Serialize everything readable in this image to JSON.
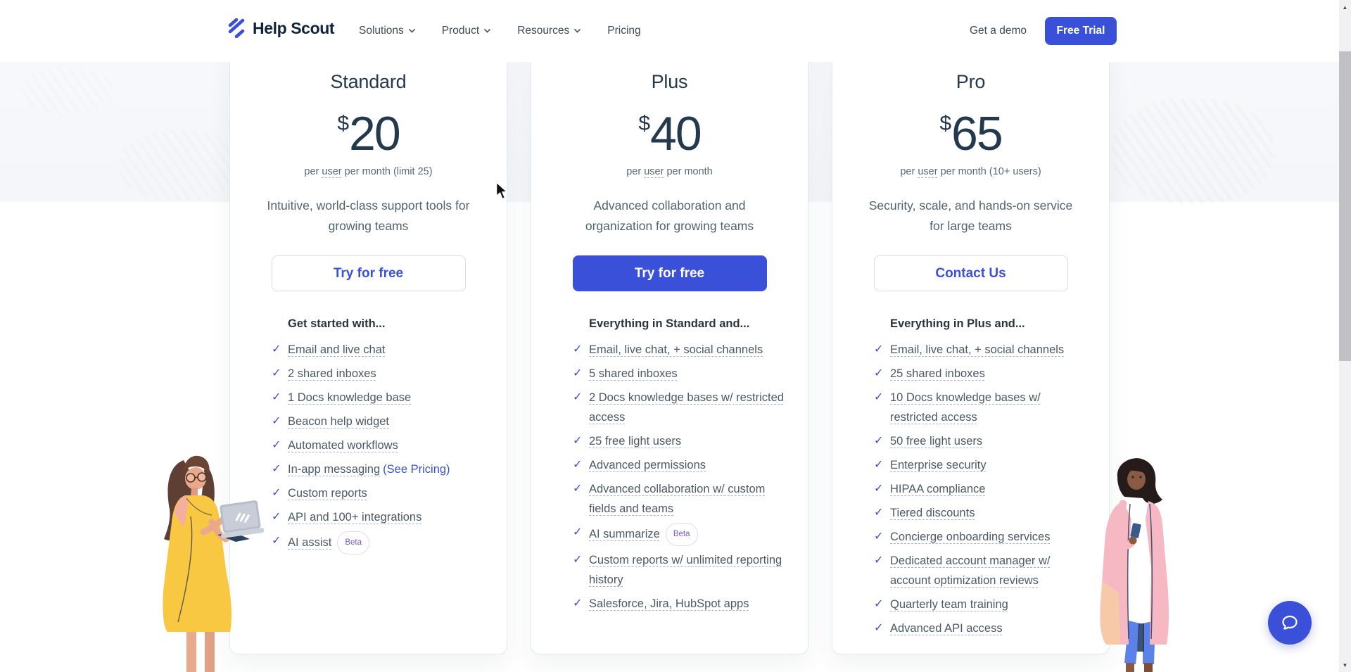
{
  "header": {
    "logo_text": "Help Scout",
    "nav": [
      {
        "label": "Solutions",
        "has_dropdown": true
      },
      {
        "label": "Product",
        "has_dropdown": true
      },
      {
        "label": "Resources",
        "has_dropdown": true
      },
      {
        "label": "Pricing",
        "has_dropdown": false
      }
    ],
    "demo_link": "Get a demo",
    "trial_button": "Free Trial"
  },
  "plans": [
    {
      "id": "standard",
      "name": "Standard",
      "currency": "$",
      "amount": "20",
      "per_prefix": "per ",
      "per_underlined": "user",
      "per_suffix": " per month (limit 25)",
      "description": "Intuitive, world-class support tools for growing teams",
      "cta_label": "Try for free",
      "cta_variant": "outline",
      "features_heading": "Get started with...",
      "features": [
        {
          "text": "Email and live chat"
        },
        {
          "text": "2 shared inboxes"
        },
        {
          "text": "1 Docs knowledge base"
        },
        {
          "text": "Beacon help widget"
        },
        {
          "text": "Automated workflows"
        },
        {
          "text": "In-app messaging",
          "link": "(See Pricing)"
        },
        {
          "text": "Custom reports"
        },
        {
          "text": "API and 100+ integrations"
        },
        {
          "text": "AI assist",
          "badge": "Beta"
        }
      ]
    },
    {
      "id": "plus",
      "name": "Plus",
      "currency": "$",
      "amount": "40",
      "per_prefix": "per ",
      "per_underlined": "user",
      "per_suffix": " per month",
      "description": "Advanced collaboration and organization for growing teams",
      "cta_label": "Try for free",
      "cta_variant": "solid",
      "features_heading": "Everything in Standard and...",
      "features": [
        {
          "text": "Email, live chat, + social channels"
        },
        {
          "text": "5 shared inboxes"
        },
        {
          "text": "2 Docs knowledge bases w/ restricted access"
        },
        {
          "text": "25 free light users"
        },
        {
          "text": "Advanced permissions"
        },
        {
          "text": "Advanced collaboration w/ custom fields and teams"
        },
        {
          "text": "AI summarize",
          "badge": "Beta"
        },
        {
          "text": "Custom reports w/ unlimited reporting history"
        },
        {
          "text": "Salesforce, Jira, HubSpot apps"
        }
      ]
    },
    {
      "id": "pro",
      "name": "Pro",
      "currency": "$",
      "amount": "65",
      "per_prefix": "per ",
      "per_underlined": "user",
      "per_suffix": " per month (10+ users)",
      "description": "Security, scale, and hands-on service for large teams",
      "cta_label": "Contact Us",
      "cta_variant": "outline",
      "features_heading": "Everything in Plus and...",
      "features": [
        {
          "text": "Email, live chat, + social channels"
        },
        {
          "text": "25 shared inboxes"
        },
        {
          "text": "10 Docs knowledge bases w/ restricted access"
        },
        {
          "text": "50 free light users"
        },
        {
          "text": "Enterprise security"
        },
        {
          "text": "HIPAA compliance"
        },
        {
          "text": "Tiered discounts"
        },
        {
          "text": "Concierge onboarding services"
        },
        {
          "text": "Dedicated account manager w/ account optimization reviews"
        },
        {
          "text": "Quarterly team training"
        },
        {
          "text": "Advanced API access"
        }
      ]
    }
  ],
  "beacon": {
    "icon": "chat-bubble"
  },
  "colors": {
    "accent": "#3B50D9",
    "heading": "#24384E",
    "gray": "#5A6978",
    "feature_text": "#4C5966",
    "underline": "#A9B4C2",
    "badge_text": "#7E57C8",
    "badge_border": "#E5D7F6",
    "band_bg": "#F5F7FA",
    "card_border": "#E4E9EF",
    "scroll_track": "#F1F1F3",
    "scroll_thumb": "#C1C1C5",
    "illo_dress": "#F9C842",
    "illo_coat": "#F6B9C3",
    "illo_jeans": "#5B82E8",
    "illo_skin_left": "#EBA98C",
    "illo_skin_right": "#8A5A42",
    "illo_hair_left": "#5F3F33",
    "illo_hair_right": "#241B1A",
    "illo_laptop": "#B9BDC9"
  }
}
